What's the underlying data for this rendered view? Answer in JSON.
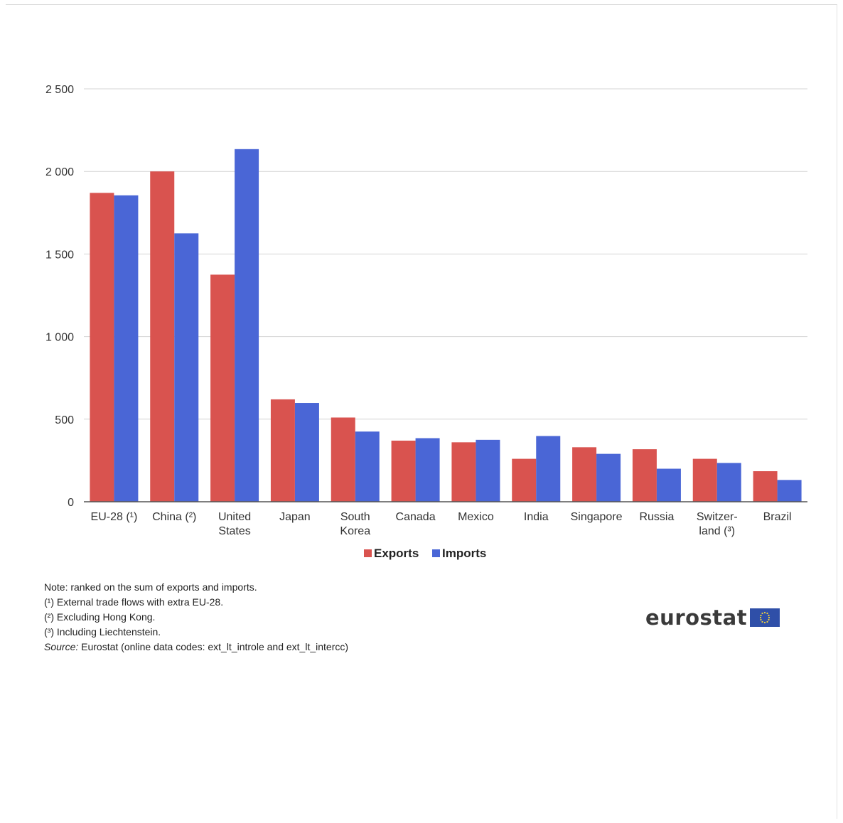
{
  "chart_data": {
    "type": "bar",
    "categories": [
      [
        "EU-28 (¹)"
      ],
      [
        "China (²)"
      ],
      [
        "United",
        "States"
      ],
      [
        "Japan"
      ],
      [
        "South",
        "Korea"
      ],
      [
        "Canada"
      ],
      [
        "Mexico"
      ],
      [
        "India"
      ],
      [
        "Singapore"
      ],
      [
        "Russia"
      ],
      [
        "Switzer-",
        "land (³)"
      ],
      [
        "Brazil"
      ]
    ],
    "series": [
      {
        "name": "Exports",
        "color": "#d9534f",
        "values": [
          1870,
          2000,
          1375,
          620,
          510,
          370,
          360,
          260,
          330,
          318,
          260,
          185
        ]
      },
      {
        "name": "Imports",
        "color": "#4a66d6",
        "values": [
          1855,
          1625,
          2135,
          598,
          425,
          385,
          375,
          398,
          290,
          200,
          235,
          132
        ]
      }
    ],
    "yticks": [
      "0",
      "500",
      "1 000",
      "1 500",
      "2 000",
      "2 500"
    ],
    "ylim": [
      0,
      2500
    ],
    "grid": true,
    "legend_position": "bottom-center"
  },
  "notes": {
    "line1": "Note: ranked on the sum of exports and imports.",
    "line2": "(¹) External trade flows with extra EU-28.",
    "line3": "(²) Excluding Hong Kong.",
    "line4": "(³) Including Liechtenstein.",
    "source_label": "Source:",
    "source_text": " Eurostat (online data codes: ext_lt_introle and ext_lt_intercc)"
  },
  "logo": {
    "text": "eurostat",
    "flag_icon": "eu-flag-icon"
  }
}
